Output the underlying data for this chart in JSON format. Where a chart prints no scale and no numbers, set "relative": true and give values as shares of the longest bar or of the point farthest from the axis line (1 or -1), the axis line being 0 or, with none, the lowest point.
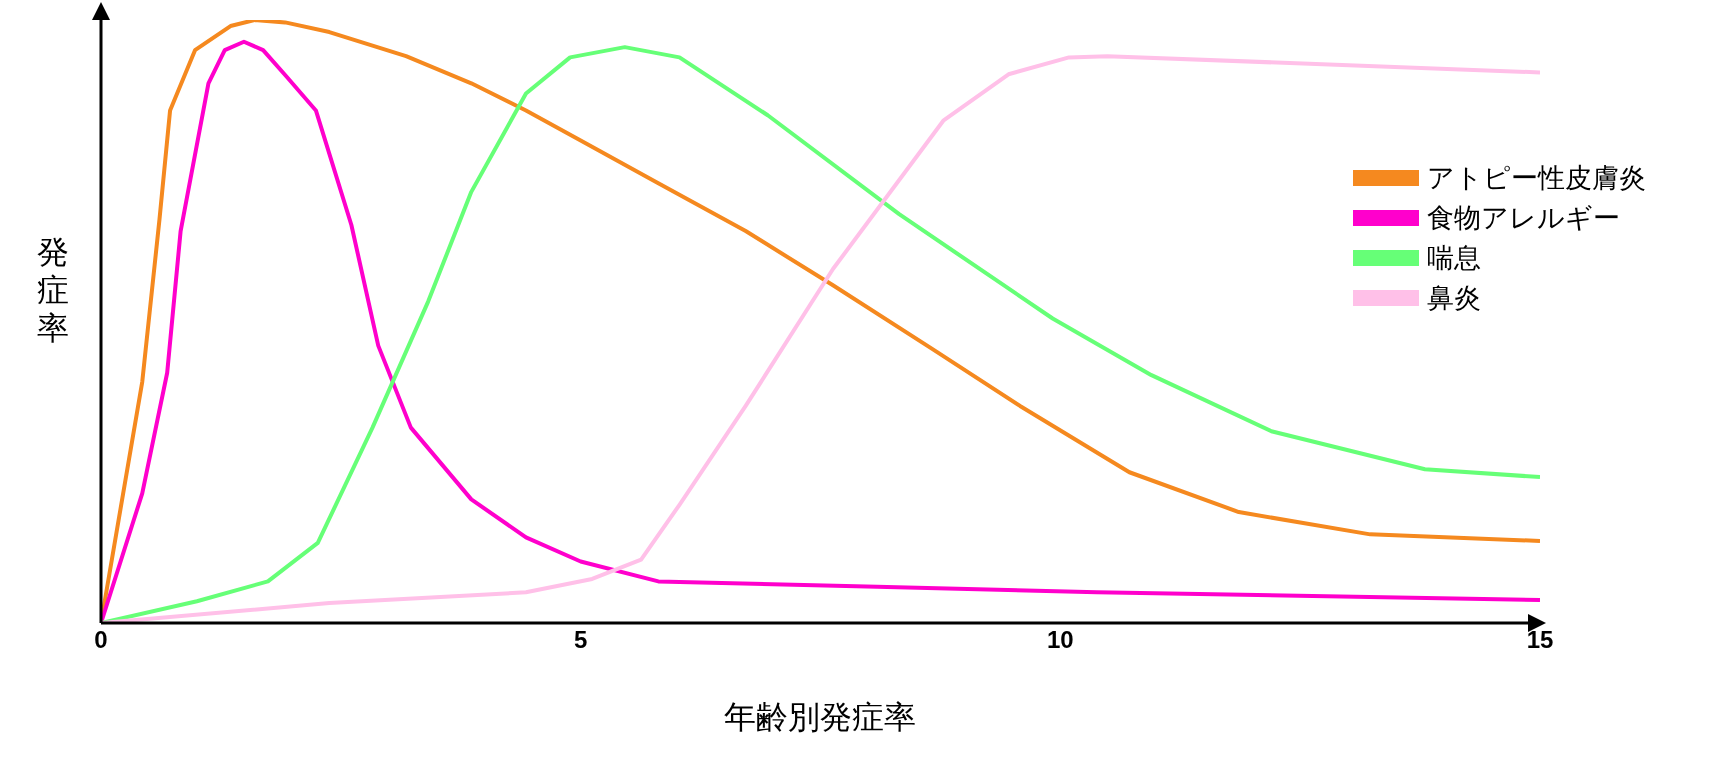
{
  "chart_data": {
    "type": "line",
    "xlabel": "年齢別発症率",
    "ylabel": "発症率",
    "relative": true,
    "xlim": [
      0,
      15
    ],
    "xticks": [
      0,
      5,
      10,
      15
    ],
    "legend": "right",
    "grid": false,
    "series": [
      {
        "name": "アトピー性皮膚炎",
        "color": "#f5891f",
        "x": [
          0,
          0.43,
          0.61,
          0.72,
          0.98,
          1.35,
          1.6,
          1.92,
          2.38,
          3.18,
          3.86,
          4.43,
          5.0,
          5.8,
          6.72,
          7.63,
          8.66,
          9.58,
          10.72,
          11.86,
          13.23,
          15
        ],
        "values": [
          0,
          0.4,
          0.67,
          0.85,
          0.95,
          0.99,
          1,
          0.996,
          0.98,
          0.94,
          0.895,
          0.85,
          0.8,
          0.73,
          0.65,
          0.56,
          0.455,
          0.36,
          0.25,
          0.184,
          0.147,
          0.136
        ]
      },
      {
        "name": "食物アレルギー",
        "color": "#ff00cc",
        "x": [
          0,
          0.43,
          0.69,
          0.83,
          1.12,
          1.29,
          1.49,
          1.69,
          1.94,
          2.24,
          2.61,
          2.89,
          3.23,
          3.86,
          4.43,
          5.0,
          5.81,
          8.09,
          10.38,
          15
        ],
        "values": [
          0,
          0.215,
          0.415,
          0.65,
          0.895,
          0.95,
          0.964,
          0.95,
          0.905,
          0.85,
          0.66,
          0.46,
          0.324,
          0.205,
          0.142,
          0.102,
          0.069,
          0.06,
          0.051,
          0.038
        ]
      },
      {
        "name": "喘息",
        "color": "#66ff77",
        "x": [
          0,
          1.0,
          1.74,
          2.26,
          2.83,
          3.41,
          3.86,
          4.43,
          4.89,
          5.46,
          6.03,
          6.95,
          8.32,
          9.92,
          10.95,
          12.2,
          13.8,
          15
        ],
        "values": [
          0,
          0.036,
          0.069,
          0.133,
          0.324,
          0.533,
          0.715,
          0.878,
          0.938,
          0.955,
          0.938,
          0.842,
          0.678,
          0.505,
          0.411,
          0.318,
          0.255,
          0.242
        ]
      },
      {
        "name": "鼻炎",
        "color": "#ffc0e8",
        "x": [
          0,
          2.38,
          4.43,
          5.12,
          5.63,
          6.03,
          6.72,
          7.63,
          8.78,
          9.46,
          10.09,
          10.49,
          15
        ],
        "values": [
          0,
          0.033,
          0.051,
          0.073,
          0.105,
          0.196,
          0.36,
          0.587,
          0.833,
          0.91,
          0.938,
          0.94,
          0.913
        ]
      }
    ]
  }
}
